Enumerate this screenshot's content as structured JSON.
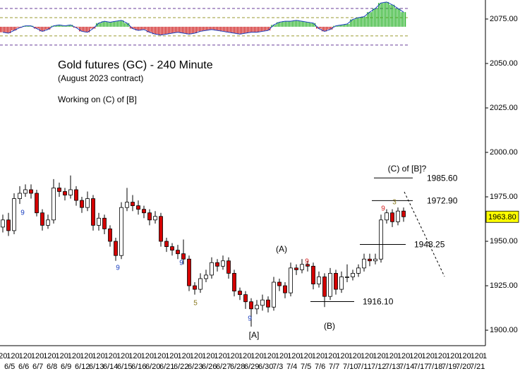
{
  "chart_data": [
    {
      "type": "histogram",
      "values": [
        -0.3,
        -0.35,
        -0.2,
        -0.05,
        0.05,
        0.05,
        -0.1,
        -0.25,
        -0.15,
        0.05,
        0.1,
        0.05,
        0.1,
        -0.05,
        -0.25,
        -0.3,
        -0.1,
        0.2,
        0.3,
        0.25,
        0.3,
        0.35,
        0.2,
        -0.1,
        -0.2,
        -0.15,
        -0.3,
        -0.4,
        -0.45,
        -0.4,
        -0.35,
        -0.3,
        -0.35,
        -0.4,
        -0.35,
        -0.25,
        -0.2,
        -0.15,
        -0.2,
        -0.25,
        -0.3,
        -0.35,
        -0.4,
        -0.35,
        -0.3,
        -0.3,
        -0.25,
        -0.2,
        0.1,
        0.25,
        0.3,
        0.3,
        0.35,
        0.3,
        0.25,
        0.2,
        -0.1,
        -0.25,
        -0.15,
        0.05,
        0.1,
        0.15,
        0.4,
        0.5,
        0.55,
        0.8,
        1.0,
        1.3,
        1.35,
        1.2,
        1.0,
        0.8
      ],
      "ylim": [
        -1.08,
        1.46
      ],
      "levels": [
        1,
        0.5,
        -0.5,
        -1
      ],
      "positive_color": "#22b022",
      "negative_color": "#cc1111"
    },
    {
      "type": "candlestick",
      "title": "Gold futures (GC) - 240 Minute",
      "subtitle": "(August 2023 contract)",
      "annotation": "Working on (C) of [B]",
      "interval_label": "120",
      "categories": [
        "6/5",
        "6/6",
        "6/7",
        "6/8",
        "6/9",
        "6/12",
        "6/13",
        "6/14",
        "6/15",
        "6/16",
        "6/20",
        "6/21",
        "6/22",
        "6/23",
        "6/26",
        "6/27",
        "6/28",
        "6/29",
        "6/30",
        "7/3",
        "7/4",
        "7/5",
        "7/6",
        "7/7",
        "7/10",
        "7/11",
        "7/12",
        "7/13",
        "7/14",
        "7/17",
        "7/18",
        "7/19",
        "7/20",
        "7/21"
      ],
      "open": [
        1958,
        1962,
        1956,
        1974,
        1977,
        1979,
        1977,
        1966,
        1959,
        1962,
        1980,
        1978,
        1976,
        1979,
        1973,
        1969,
        1974,
        1959,
        1963,
        1957,
        1950,
        1942,
        1969,
        1972,
        1970,
        1968,
        1966,
        1962,
        1964,
        1950,
        1947,
        1945,
        1943,
        1940,
        1925,
        1923,
        1929,
        1931,
        1938,
        1936,
        1939,
        1932,
        1922,
        1920,
        1916,
        1912,
        1914,
        1917,
        1913,
        1927,
        1925,
        1921,
        1935,
        1934,
        1937,
        1936,
        1926,
        1930,
        1919,
        1932,
        1923,
        1930,
        1930,
        1932,
        1935,
        1940,
        1939,
        1940,
        1962,
        1966,
        1961,
        1967
      ],
      "high": [
        1965,
        1966,
        1977,
        1981,
        1982,
        1982,
        1979,
        1968,
        1965,
        1985,
        1983,
        1980,
        1987,
        1981,
        1975,
        1978,
        1976,
        1966,
        1965,
        1959,
        1952,
        1972,
        1980,
        1976,
        1973,
        1970,
        1968,
        1967,
        1966,
        1952,
        1949,
        1948,
        1951,
        1942,
        1927,
        1932,
        1934,
        1941,
        1940,
        1942,
        1941,
        1934,
        1924,
        1922,
        1918,
        1917,
        1920,
        1919,
        1930,
        1929,
        1927,
        1938,
        1937,
        1940,
        1939,
        1938,
        1933,
        1932,
        1935,
        1934,
        1933,
        1937,
        1934,
        1937,
        1943,
        1943,
        1943,
        1965,
        1968,
        1968,
        1969,
        1969
      ],
      "low": [
        1955,
        1953,
        1954,
        1971,
        1975,
        1974,
        1964,
        1956,
        1957,
        1960,
        1975,
        1973,
        1974,
        1970,
        1966,
        1967,
        1956,
        1956,
        1954,
        1947,
        1939,
        1940,
        1967,
        1967,
        1965,
        1963,
        1959,
        1960,
        1947,
        1944,
        1942,
        1940,
        1937,
        1922,
        1920,
        1921,
        1927,
        1929,
        1933,
        1934,
        1929,
        1919,
        1917,
        1912,
        1902,
        1909,
        1911,
        1910,
        1911,
        1922,
        1918,
        1919,
        1931,
        1932,
        1933,
        1923,
        1924,
        1913,
        1917,
        1920,
        1921,
        1927,
        1928,
        1930,
        1933,
        1936,
        1937,
        1938,
        1960,
        1958,
        1959,
        1961
      ],
      "close": [
        1962,
        1956,
        1974,
        1977,
        1979,
        1977,
        1966,
        1959,
        1962,
        1980,
        1978,
        1976,
        1979,
        1973,
        1969,
        1974,
        1959,
        1963,
        1957,
        1950,
        1942,
        1969,
        1972,
        1970,
        1968,
        1966,
        1962,
        1964,
        1950,
        1947,
        1945,
        1943,
        1940,
        1925,
        1923,
        1929,
        1931,
        1938,
        1936,
        1939,
        1932,
        1922,
        1920,
        1916,
        1912,
        1914,
        1917,
        1913,
        1927,
        1925,
        1921,
        1935,
        1934,
        1937,
        1936,
        1926,
        1930,
        1919,
        1932,
        1923,
        1930,
        1930,
        1932,
        1935,
        1940,
        1939,
        1940,
        1962,
        1966,
        1961,
        1967,
        1963.8
      ],
      "up_color": "#ffffff",
      "down_color": "#d40000",
      "ylim": [
        1891.3,
        2085.7
      ],
      "yticks": [
        {
          "value": 1900,
          "label": "1900.00"
        },
        {
          "value": 1925,
          "label": "1925.00"
        },
        {
          "value": 1950,
          "label": "1950.00"
        },
        {
          "value": 1975,
          "label": "1975.00"
        },
        {
          "value": 2000,
          "label": "2000.00"
        },
        {
          "value": 2025,
          "label": "2025.00"
        },
        {
          "value": 2050,
          "label": "2050.00"
        },
        {
          "value": 2075,
          "label": "2075.00"
        }
      ],
      "last_price": {
        "value": 1963.8,
        "label": "1963.80"
      },
      "levels": [
        {
          "value": 1985.6,
          "label": "1985.60"
        },
        {
          "value": 1972.9,
          "label": "1972.90"
        },
        {
          "value": 1948.25,
          "label": "1948.25"
        },
        {
          "value": 1916.1,
          "label": "1916.10"
        }
      ],
      "wave_labels": [
        "(A)",
        "(B)",
        "[A]",
        "(C) of [B]?"
      ],
      "wave_counts": [
        {
          "text": "9",
          "color": "#1a3fbf"
        },
        {
          "text": "9",
          "color": "#1a3fbf"
        },
        {
          "text": "9",
          "color": "#1a3fbf"
        },
        {
          "text": "5",
          "color": "#8a7a20"
        },
        {
          "text": "9",
          "color": "#1a3fbf"
        },
        {
          "text": "9",
          "color": "#d42020"
        },
        {
          "text": "9",
          "color": "#d42020"
        },
        {
          "text": "3",
          "color": "#8a7a20"
        }
      ]
    }
  ]
}
